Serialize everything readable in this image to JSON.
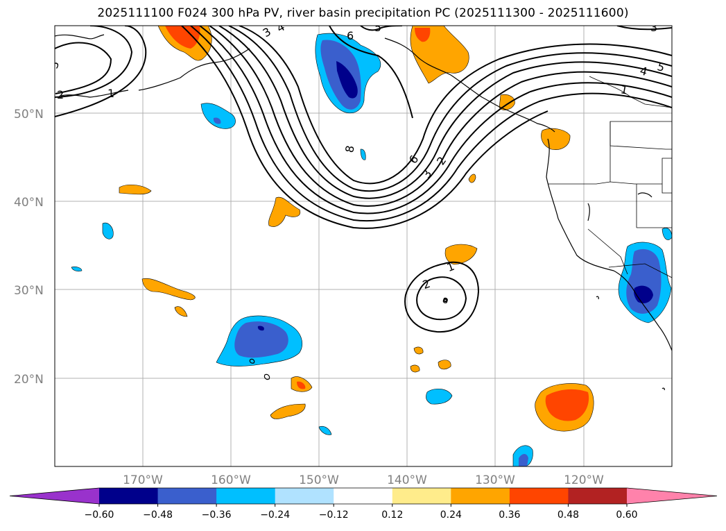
{
  "title": "2025111100 F024 300 hPa PV, river basin precipitation PC (2025111300 - 2025111600)",
  "map": {
    "projection": "PlateCarree",
    "lon_range": [
      -180,
      -110
    ],
    "lat_range": [
      10,
      60
    ],
    "lat_labels": [
      "50°N",
      "40°N",
      "30°N",
      "20°N"
    ],
    "lon_labels": [
      "170°W",
      "160°W",
      "150°W",
      "140°W",
      "130°W",
      "120°W"
    ]
  },
  "pv_contour_labels": [
    "1",
    "2",
    "3",
    "4",
    "5",
    "6",
    "8",
    "1",
    "2",
    "3",
    "4",
    "5",
    "1",
    "2",
    "6",
    "3",
    "2"
  ],
  "colorbar": {
    "ticks": [
      "−0.60",
      "−0.48",
      "−0.36",
      "−0.24",
      "−0.12",
      "0.12",
      "0.24",
      "0.36",
      "0.48",
      "0.60"
    ],
    "colors": [
      "#9932cc",
      "#00008b",
      "#3a5fcd",
      "#00bfff",
      "#b0e2ff",
      "#ffffff",
      "#ffec8b",
      "#ffa500",
      "#ff4500",
      "#b22222",
      "#ff82ab"
    ]
  }
}
